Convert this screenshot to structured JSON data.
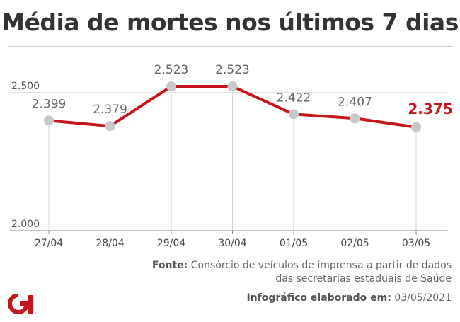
{
  "title": "Média de mortes nos últimos 7 dias",
  "source_label": "Fonte:",
  "source_text": "Consórcio de veículos de imprensa a partir de dados das secretarias estaduais de Saúde",
  "credit_label": "Infográfico elaborado em:",
  "credit_date": "03/05/2021",
  "logo_text": "G1",
  "colors": {
    "line": "#c4161c",
    "point": "#c8c8c8",
    "highlight_label": "#c4161c",
    "text": "#555555"
  },
  "chart_data": {
    "type": "line",
    "categories": [
      "27/04",
      "28/04",
      "29/04",
      "30/04",
      "01/05",
      "02/05",
      "03/05"
    ],
    "values": [
      2399,
      2379,
      2523,
      2523,
      2422,
      2407,
      2375
    ],
    "data_labels": [
      "2.399",
      "2.379",
      "2.523",
      "2.523",
      "2.422",
      "2.407",
      "2.375"
    ],
    "highlight_index": 6,
    "yticks": [
      2000,
      2500
    ],
    "ytick_labels": [
      "2.000",
      "2.500"
    ],
    "ylim": [
      2000,
      2500
    ],
    "grid": true
  }
}
